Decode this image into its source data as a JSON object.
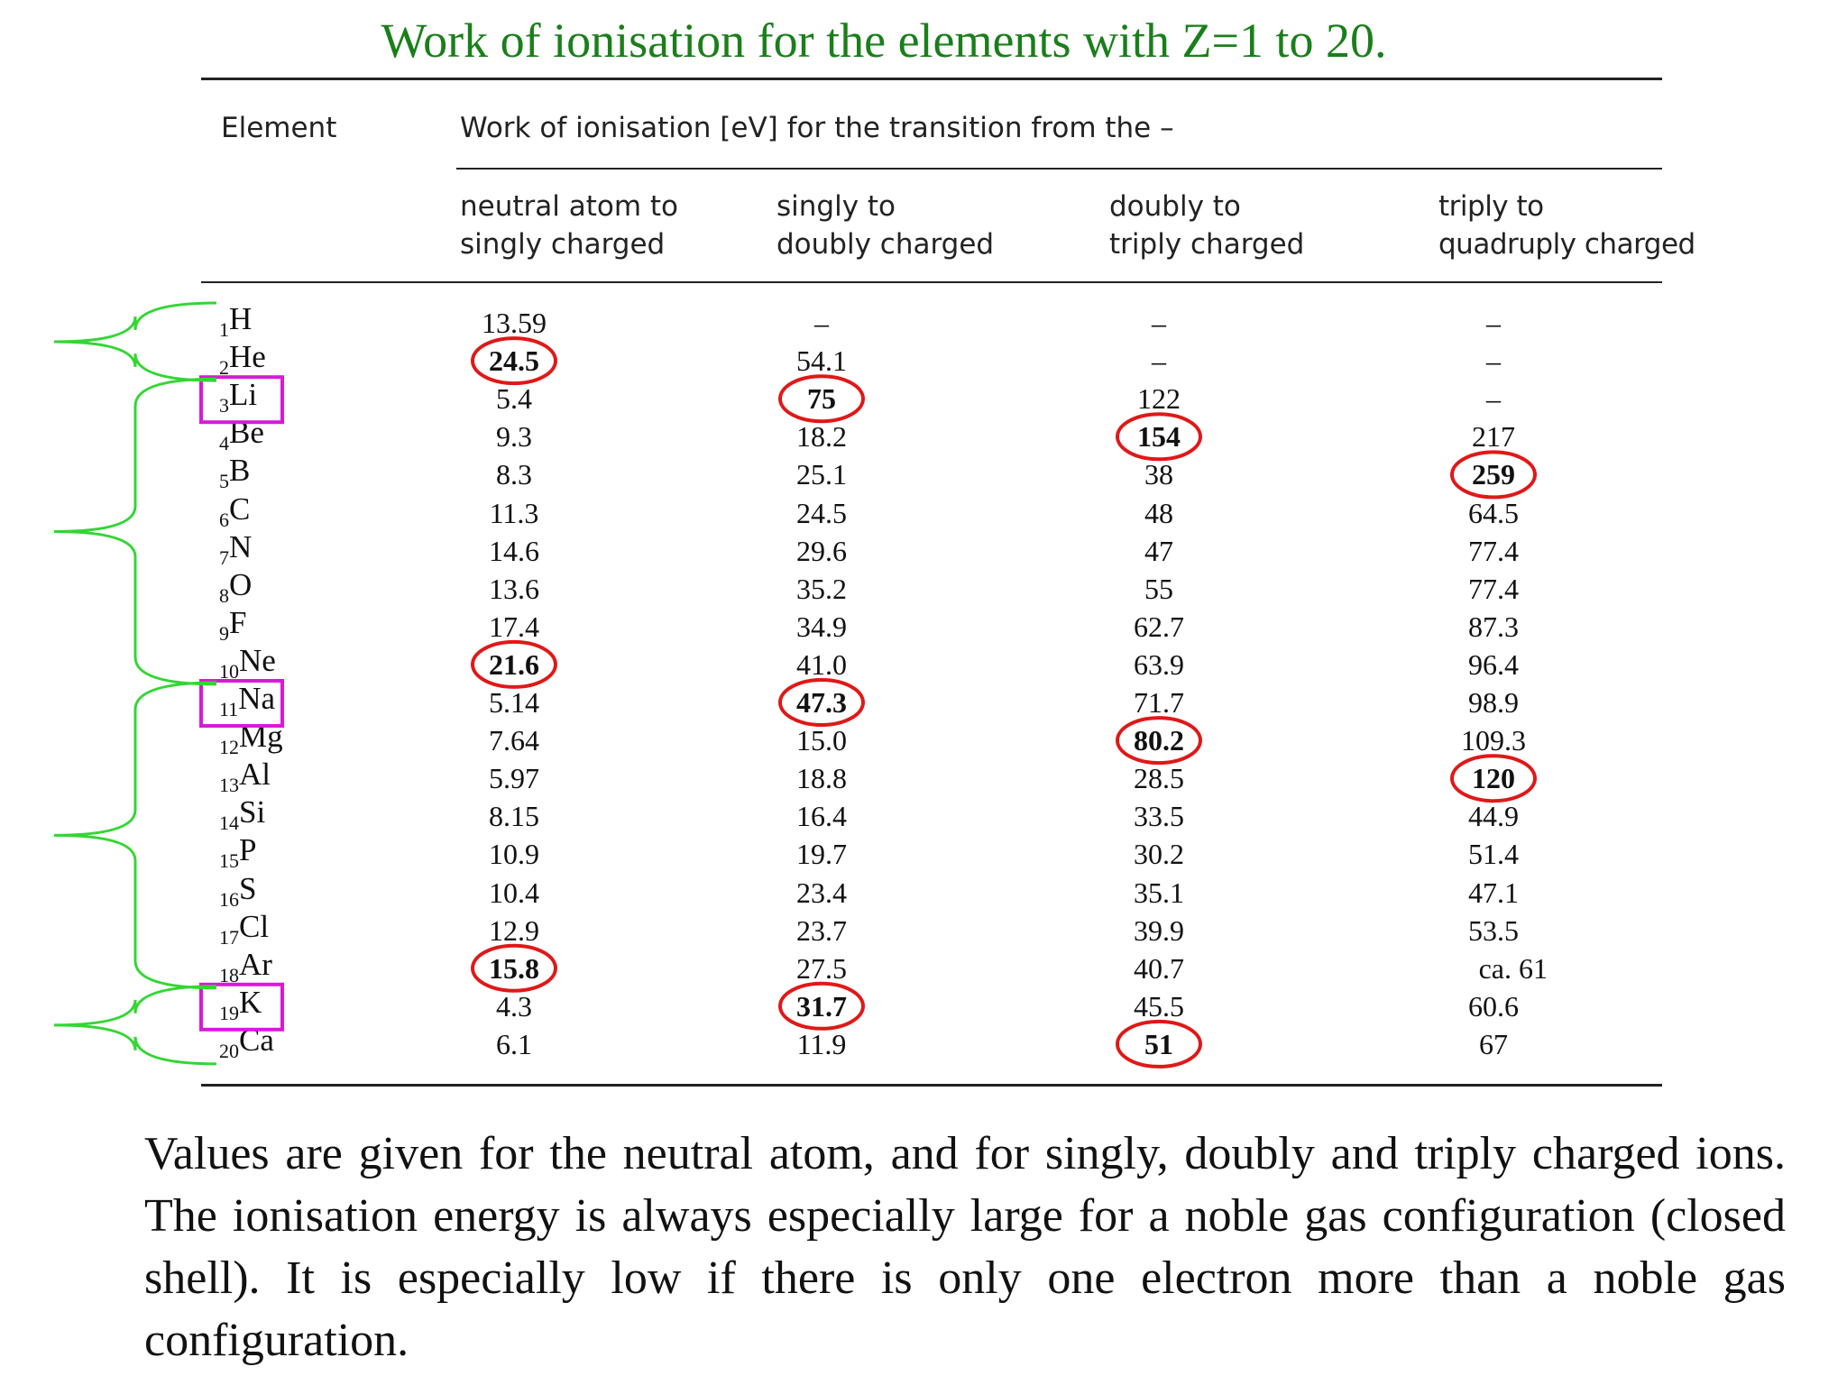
{
  "title": "Work of ionisation for the elements with Z=1 to 20.",
  "header": {
    "element_label": "Element",
    "group_label": "Work of ionisation [eV] for the transition from the –",
    "columns": [
      [
        "neutral atom to",
        "singly charged"
      ],
      [
        "singly to",
        "doubly charged"
      ],
      [
        "doubly to",
        "triply charged"
      ],
      [
        "triply to",
        "quadruply charged"
      ]
    ]
  },
  "rows": [
    {
      "z": "1",
      "symbol": "H",
      "values": [
        "13.59",
        "–",
        "–",
        "–"
      ]
    },
    {
      "z": "2",
      "symbol": "He",
      "values": [
        "24.5",
        "54.1",
        "–",
        "–"
      ]
    },
    {
      "z": "3",
      "symbol": "Li",
      "values": [
        "5.4",
        "75",
        "122",
        "–"
      ]
    },
    {
      "z": "4",
      "symbol": "Be",
      "values": [
        "9.3",
        "18.2",
        "154",
        "217"
      ]
    },
    {
      "z": "5",
      "symbol": "B",
      "values": [
        "8.3",
        "25.1",
        "38",
        "259"
      ]
    },
    {
      "z": "6",
      "symbol": "C",
      "values": [
        "11.3",
        "24.5",
        "48",
        "64.5"
      ]
    },
    {
      "z": "7",
      "symbol": "N",
      "values": [
        "14.6",
        "29.6",
        "47",
        "77.4"
      ]
    },
    {
      "z": "8",
      "symbol": "O",
      "values": [
        "13.6",
        "35.2",
        "55",
        "77.4"
      ]
    },
    {
      "z": "9",
      "symbol": "F",
      "values": [
        "17.4",
        "34.9",
        "62.7",
        "87.3"
      ]
    },
    {
      "z": "10",
      "symbol": "Ne",
      "values": [
        "21.6",
        "41.0",
        "63.9",
        "96.4"
      ]
    },
    {
      "z": "11",
      "symbol": "Na",
      "values": [
        "5.14",
        "47.3",
        "71.7",
        "98.9"
      ]
    },
    {
      "z": "12",
      "symbol": "Mg",
      "values": [
        "7.64",
        "15.0",
        "80.2",
        "109.3"
      ]
    },
    {
      "z": "13",
      "symbol": "Al",
      "values": [
        "5.97",
        "18.8",
        "28.5",
        "120"
      ]
    },
    {
      "z": "14",
      "symbol": "Si",
      "values": [
        "8.15",
        "16.4",
        "33.5",
        "44.9"
      ]
    },
    {
      "z": "15",
      "symbol": "P",
      "values": [
        "10.9",
        "19.7",
        "30.2",
        "51.4"
      ]
    },
    {
      "z": "16",
      "symbol": "S",
      "values": [
        "10.4",
        "23.4",
        "35.1",
        "47.1"
      ]
    },
    {
      "z": "17",
      "symbol": "Cl",
      "values": [
        "12.9",
        "23.7",
        "39.9",
        "53.5"
      ]
    },
    {
      "z": "18",
      "symbol": "Ar",
      "values": [
        "15.8",
        "27.5",
        "40.7",
        "ca. 61"
      ]
    },
    {
      "z": "19",
      "symbol": "K",
      "values": [
        "4.3",
        "31.7",
        "45.5",
        "60.6"
      ]
    },
    {
      "z": "20",
      "symbol": "Ca",
      "values": [
        "6.1",
        "11.9",
        "51",
        "67"
      ]
    }
  ],
  "highlights": {
    "circled": [
      [
        1,
        0
      ],
      [
        2,
        1
      ],
      [
        3,
        2
      ],
      [
        4,
        3
      ],
      [
        9,
        0
      ],
      [
        10,
        1
      ],
      [
        11,
        2
      ],
      [
        12,
        3
      ],
      [
        17,
        0
      ],
      [
        18,
        1
      ],
      [
        19,
        2
      ]
    ],
    "boxed_rows": [
      2,
      10,
      18
    ],
    "shell_brackets": [
      [
        0,
        1
      ],
      [
        2,
        9
      ],
      [
        10,
        17
      ],
      [
        18,
        19
      ]
    ],
    "colors": {
      "circle": "#e01818",
      "box": "#d81ad8",
      "bracket": "#33d633",
      "title": "#1a7f1a"
    }
  },
  "caption": "Values are given for the neutral atom, and for singly, doubly and triply charged ions. The ionisation energy is always especially large for a noble gas configuration (closed shell). It is especially low if there is only one electron more than a noble gas configuration."
}
